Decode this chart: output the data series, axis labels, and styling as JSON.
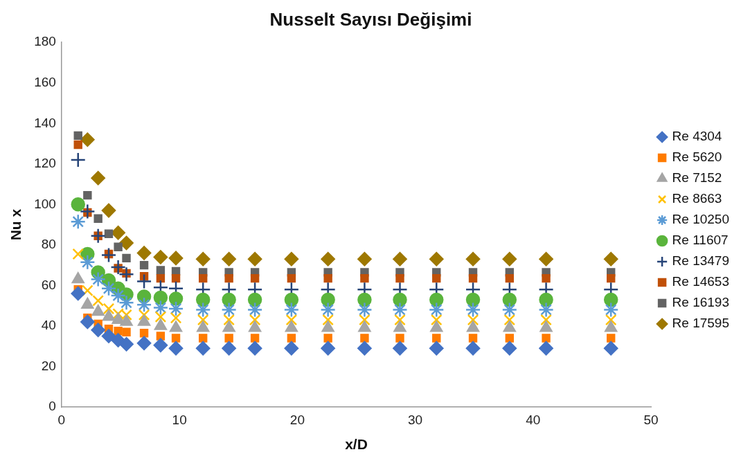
{
  "chart_data": {
    "type": "scatter",
    "title": "Nusselt Sayısı Değişimi",
    "xlabel": "x/D",
    "ylabel": "Nu x",
    "x": [
      1.4,
      2.2,
      3.1,
      4.0,
      4.8,
      5.5,
      7.0,
      8.4,
      9.7,
      12.0,
      14.2,
      16.4,
      19.5,
      22.6,
      25.7,
      28.7,
      31.8,
      34.9,
      38.0,
      41.1,
      46.6
    ],
    "series": [
      {
        "name": "Re 4304",
        "color": "#4472c4",
        "marker": "diamond",
        "values": [
          56,
          42,
          38,
          35,
          33,
          31,
          31.5,
          30.5,
          29,
          29,
          29,
          29,
          29,
          29,
          29,
          29,
          29,
          29,
          29,
          29,
          29
        ]
      },
      {
        "name": "Re 5620",
        "color": "#ff7b00",
        "marker": "square",
        "values": [
          58,
          44,
          41,
          38.5,
          37.5,
          37,
          36.5,
          35,
          34,
          34,
          34,
          34,
          34,
          34,
          34,
          34,
          34,
          34,
          34,
          34,
          34
        ]
      },
      {
        "name": "Re 7152",
        "color": "#a5a5a5",
        "marker": "triangle",
        "values": [
          63,
          50.5,
          47,
          44.5,
          43,
          42,
          42,
          40,
          39,
          39,
          39,
          39,
          39,
          39,
          39,
          39,
          39,
          39,
          39,
          39,
          39
        ]
      },
      {
        "name": "Re 8663",
        "color": "#ffc000",
        "marker": "x",
        "values": [
          75.5,
          57.5,
          52.5,
          48.5,
          46,
          45.5,
          45.5,
          44.5,
          44,
          43,
          43,
          43,
          43,
          43,
          43,
          43,
          43,
          43,
          43,
          43,
          43
        ]
      },
      {
        "name": "Re 10250",
        "color": "#5b9bd5",
        "values": [
          91.5,
          71.5,
          63,
          58.5,
          55,
          51.5,
          50.5,
          49,
          48.5,
          48,
          48,
          48,
          48,
          48,
          48,
          48,
          48,
          48,
          48,
          48,
          48
        ]
      },
      {
        "name": "Re 11607",
        "color": "#5ab43c",
        "marker": "circle",
        "values": [
          100,
          75.5,
          66.5,
          62.5,
          58.5,
          55.5,
          54.5,
          54,
          53.5,
          53,
          53,
          53,
          53,
          53,
          53,
          53,
          53,
          53,
          53,
          53,
          53
        ]
      },
      {
        "name": "Re 13479",
        "color": "#264478",
        "marker": "cross",
        "values": [
          122,
          96.5,
          84.5,
          75,
          69,
          65.5,
          62,
          59,
          58.5,
          58,
          58,
          58,
          58,
          58,
          58,
          58,
          58,
          58,
          58,
          58,
          58
        ]
      },
      {
        "name": "Re 14653",
        "color": "#c05008",
        "marker": "square",
        "values": [
          129.5,
          96,
          84.5,
          75.5,
          68.5,
          66,
          64.5,
          63.5,
          63.5,
          63.5,
          63.5,
          63.5,
          63.5,
          63.5,
          63.5,
          63.5,
          63.5,
          63.5,
          63.5,
          63.5,
          63.5
        ]
      },
      {
        "name": "Re 16193",
        "color": "#636363",
        "marker": "square",
        "values": [
          134,
          104.5,
          93,
          85.5,
          79,
          73.5,
          70,
          67.5,
          67,
          66.5,
          66.5,
          66.5,
          66.5,
          66.5,
          66.5,
          66.5,
          66.5,
          66.5,
          66.5,
          66.5,
          66.5
        ]
      },
      {
        "name": "Re 17595",
        "color": "#9e7800",
        "marker": "diamond",
        "values": [
          null,
          132,
          113,
          97,
          86,
          81,
          76,
          74,
          73.5,
          73,
          73,
          73,
          73,
          73,
          73,
          73,
          73,
          73,
          73,
          73,
          73
        ]
      }
    ],
    "xlim": [
      0,
      50
    ],
    "xticks": [
      0,
      10,
      20,
      30,
      40,
      50
    ],
    "ylim": [
      0,
      180
    ],
    "yticks": [
      0,
      20,
      40,
      60,
      80,
      100,
      120,
      140,
      160,
      180
    ],
    "grid": false,
    "legend": "right"
  }
}
